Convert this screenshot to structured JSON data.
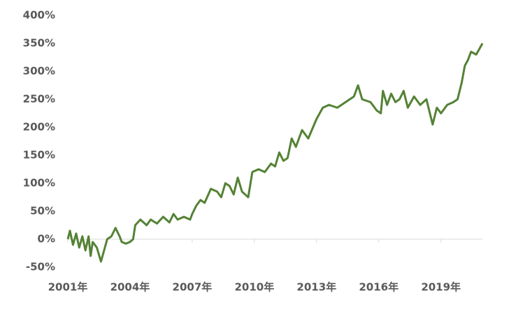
{
  "chart_data": {
    "type": "line",
    "x": [
      2001.0,
      2001.1,
      2001.25,
      2001.4,
      2001.55,
      2001.7,
      2001.85,
      2002.0,
      2002.1,
      2002.2,
      2002.4,
      2002.6,
      2002.75,
      2002.9,
      2003.1,
      2003.3,
      2003.5,
      2003.6,
      2003.8,
      2004.0,
      2004.15,
      2004.25,
      2004.5,
      2004.8,
      2005.0,
      2005.3,
      2005.6,
      2005.9,
      2006.1,
      2006.3,
      2006.6,
      2006.9,
      2007.0,
      2007.2,
      2007.4,
      2007.6,
      2007.9,
      2008.2,
      2008.4,
      2008.6,
      2008.8,
      2009.0,
      2009.2,
      2009.4,
      2009.7,
      2009.9,
      2010.2,
      2010.5,
      2010.8,
      2011.0,
      2011.2,
      2011.4,
      2011.6,
      2011.8,
      2012.0,
      2012.3,
      2012.6,
      2013.0,
      2013.3,
      2013.6,
      2014.0,
      2014.4,
      2014.8,
      2015.0,
      2015.2,
      2015.6,
      2015.9,
      2016.1,
      2016.2,
      2016.4,
      2016.6,
      2016.8,
      2017.0,
      2017.2,
      2017.4,
      2017.7,
      2018.0,
      2018.3,
      2018.6,
      2018.8,
      2019.0,
      2019.3,
      2019.6,
      2019.8,
      2020.0,
      2020.15,
      2020.3,
      2020.45,
      2020.7,
      2020.85,
      2021.0
    ],
    "series": [
      {
        "color": "#548235",
        "values": [
          0,
          15,
          -10,
          10,
          -15,
          5,
          -20,
          5,
          -30,
          -5,
          -15,
          -40,
          -20,
          0,
          5,
          20,
          5,
          -5,
          -8,
          -5,
          0,
          25,
          35,
          25,
          35,
          28,
          40,
          30,
          45,
          35,
          40,
          35,
          45,
          60,
          70,
          65,
          90,
          85,
          75,
          100,
          95,
          80,
          110,
          85,
          75,
          120,
          125,
          120,
          135,
          130,
          155,
          140,
          145,
          180,
          165,
          195,
          180,
          215,
          235,
          240,
          235,
          245,
          255,
          275,
          250,
          245,
          230,
          225,
          265,
          240,
          260,
          245,
          250,
          265,
          235,
          255,
          240,
          250,
          205,
          235,
          225,
          240,
          245,
          250,
          280,
          310,
          320,
          335,
          330,
          340,
          350
        ]
      }
    ],
    "xlim": [
      2001,
      2021
    ],
    "xticks": [
      {
        "value": 2001,
        "label": "2001年"
      },
      {
        "value": 2004,
        "label": "2004年"
      },
      {
        "value": 2007,
        "label": "2007年"
      },
      {
        "value": 2010,
        "label": "2010年"
      },
      {
        "value": 2013,
        "label": "2013年"
      },
      {
        "value": 2016,
        "label": "2016年"
      },
      {
        "value": 2019,
        "label": "2019年"
      }
    ],
    "ylim": [
      -50,
      400
    ],
    "yticks": [
      {
        "value": -50,
        "label": "-50%"
      },
      {
        "value": 0,
        "label": "0%"
      },
      {
        "value": 50,
        "label": "50%"
      },
      {
        "value": 100,
        "label": "100%"
      },
      {
        "value": 150,
        "label": "150%"
      },
      {
        "value": 200,
        "label": "200%"
      },
      {
        "value": 250,
        "label": "250%"
      },
      {
        "value": 300,
        "label": "300%"
      },
      {
        "value": 350,
        "label": "350%"
      },
      {
        "value": 400,
        "label": "400%"
      }
    ]
  }
}
